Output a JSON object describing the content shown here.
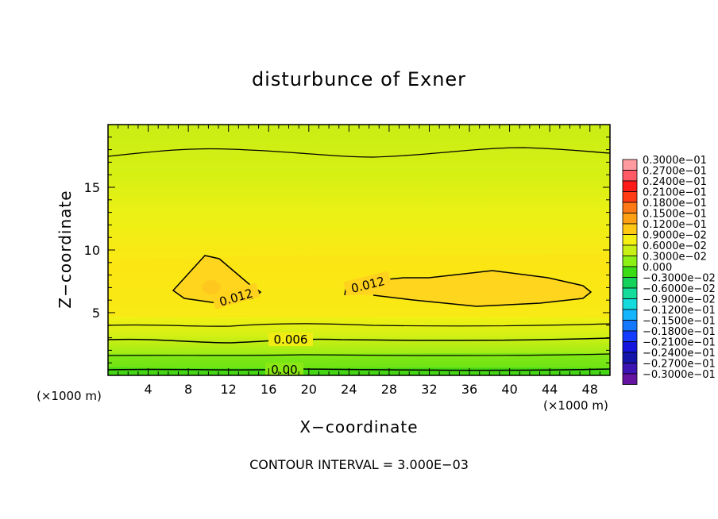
{
  "chart_data": {
    "type": "heatmap",
    "title": "disturbunce of Exner",
    "xlabel": "X−coordinate",
    "ylabel": "Z−coordinate",
    "x_unit_label": "(×1000 m)",
    "y_unit_label": "(×1000 m)",
    "xlim": [
      0,
      50
    ],
    "ylim": [
      0,
      20
    ],
    "x_ticks": [
      "4",
      "8",
      "12",
      "16",
      "20",
      "24",
      "28",
      "32",
      "36",
      "40",
      "44",
      "48"
    ],
    "y_ticks": [
      "5",
      "10",
      "15"
    ],
    "contour_interval_label": "CONTOUR INTERVAL = 3.000E−03",
    "contour_labels": [
      "0.012",
      "0.012",
      "0.006",
      "0.00"
    ],
    "colorbar": {
      "labels": [
        "0.3000e−01",
        "0.2700e−01",
        "0.2400e−01",
        "0.2100e−01",
        "0.1800e−01",
        "0.1500e−01",
        "0.1200e−01",
        "0.9000e−02",
        "0.6000e−02",
        "0.3000e−02",
        "0.000",
        "−0.3000e−02",
        "−0.6000e−02",
        "−0.9000e−02",
        "−0.1200e−01",
        "−0.1500e−01",
        "−0.1800e−01",
        "−0.2100e−01",
        "−0.2400e−01",
        "−0.2700e−01",
        "−0.3000e−01"
      ],
      "colors": [
        "#ff9aa0",
        "#ff5a66",
        "#ff1a1a",
        "#ff3c14",
        "#ff7a14",
        "#ffa014",
        "#ffc814",
        "#f5f014",
        "#c8f014",
        "#8cf014",
        "#3cdc14",
        "#14d25a",
        "#14dc9a",
        "#14dcdc",
        "#14b4ff",
        "#1478ff",
        "#143cff",
        "#1414dc",
        "#1414aa",
        "#3c14b4",
        "#6414a0"
      ]
    }
  }
}
